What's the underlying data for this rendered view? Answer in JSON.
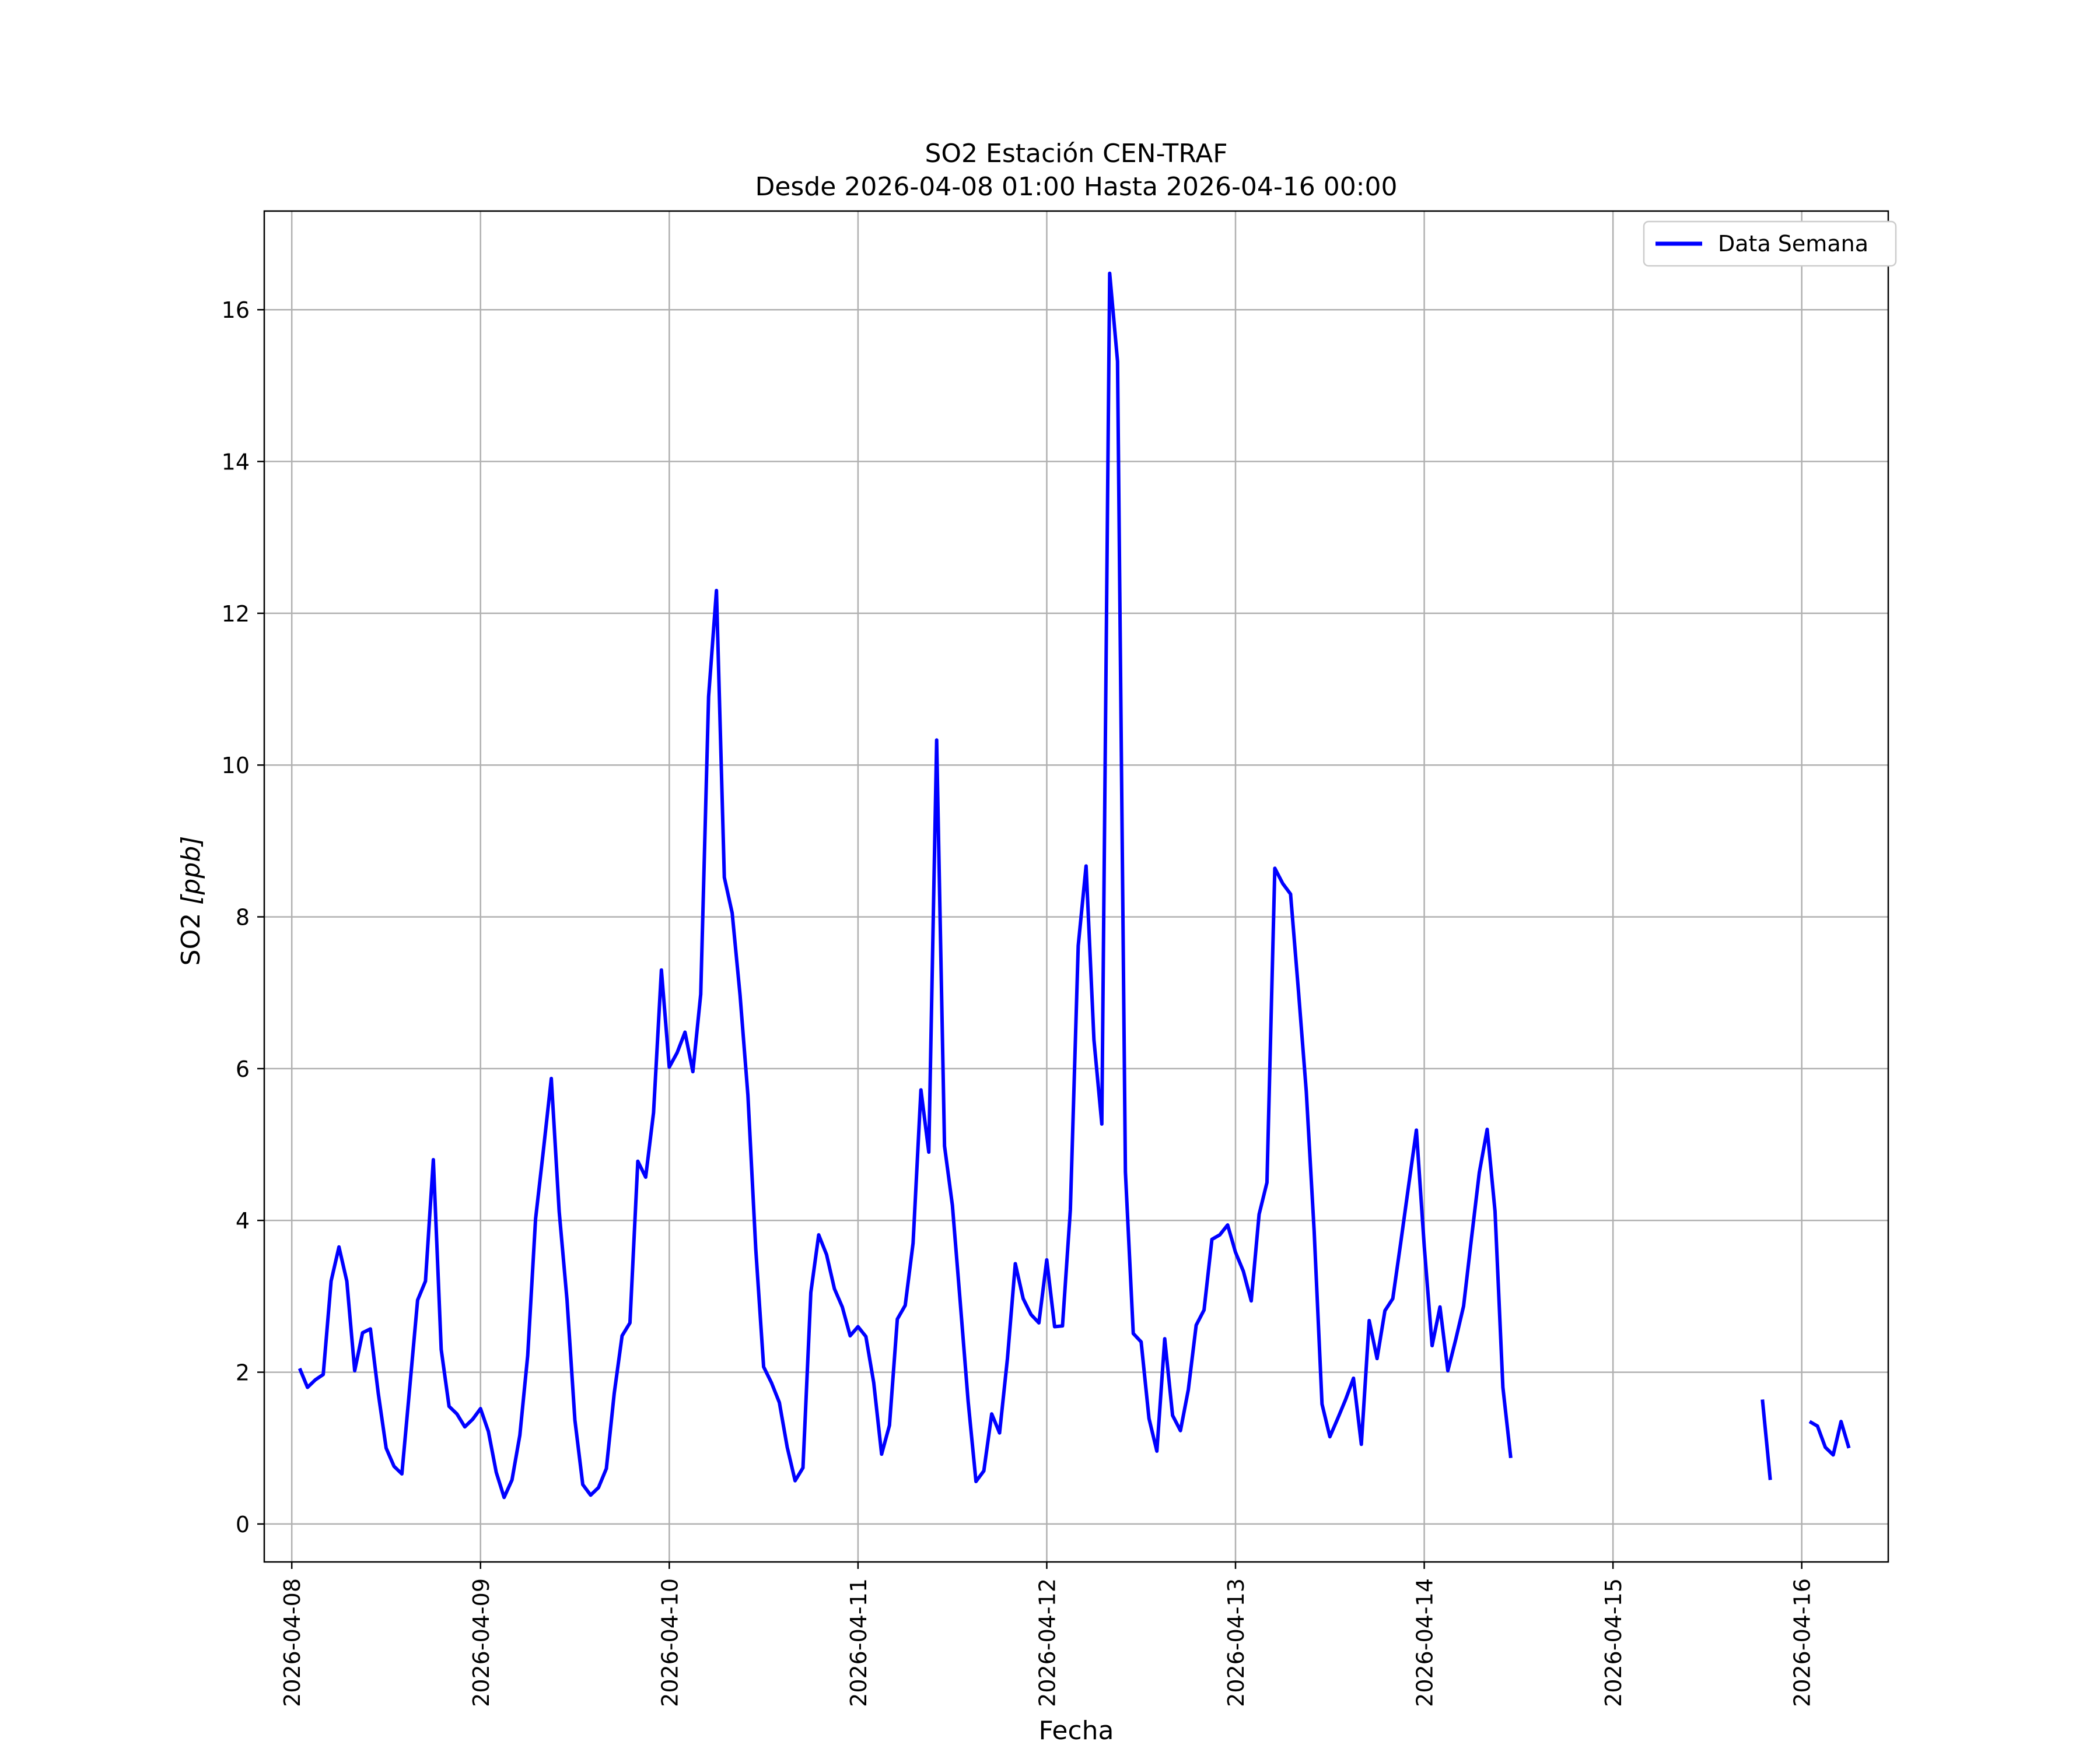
{
  "chart_data": {
    "type": "line",
    "title": "SO2 Estación CEN-TRAF",
    "subtitle": "Desde 2026-04-08 01:00 Hasta 2026-04-16 00:00",
    "xlabel": "Fecha",
    "ylabel_prefix": "SO2 ",
    "ylabel_unit": "[ppb]",
    "x_start": "2026-04-08 01:00",
    "xlim": [
      "2026-04-07 20:30",
      "2026-04-16 11:00"
    ],
    "ylim": [
      -0.5,
      17.3
    ],
    "x_ticks": [
      "2026-04-08",
      "2026-04-09",
      "2026-04-10",
      "2026-04-11",
      "2026-04-12",
      "2026-04-13",
      "2026-04-14",
      "2026-04-15",
      "2026-04-16"
    ],
    "y_ticks": [
      0,
      2,
      4,
      6,
      8,
      10,
      12,
      14,
      16
    ],
    "y_tick_labels": [
      "0",
      "2",
      "4",
      "6",
      "8",
      "10",
      "12",
      "14",
      "16"
    ],
    "grid": true,
    "legend_position": "top-right",
    "series": [
      {
        "name": "Data Semana",
        "color": "#0000ff",
        "interval_hours": 1,
        "values": [
          2.05,
          1.8,
          1.9,
          1.97,
          3.2,
          3.65,
          3.2,
          2.02,
          2.52,
          2.57,
          1.72,
          1.0,
          0.76,
          0.66,
          1.8,
          2.95,
          3.2,
          4.8,
          2.3,
          1.55,
          1.45,
          1.28,
          1.38,
          1.52,
          1.22,
          0.68,
          0.35,
          0.58,
          1.17,
          2.22,
          4.02,
          4.93,
          5.87,
          4.12,
          2.95,
          1.37,
          0.52,
          0.38,
          0.48,
          0.73,
          1.72,
          2.48,
          2.65,
          4.78,
          4.57,
          5.42,
          7.3,
          6.02,
          6.21,
          6.48,
          5.96,
          6.98,
          10.9,
          12.3,
          8.52,
          8.05,
          6.97,
          5.65,
          3.62,
          2.07,
          1.86,
          1.6,
          1.01,
          0.57,
          0.74,
          3.05,
          3.81,
          3.55,
          3.1,
          2.86,
          2.48,
          2.6,
          2.47,
          1.86,
          0.92,
          1.3,
          2.7,
          2.88,
          3.7,
          5.72,
          4.9,
          10.33,
          4.98,
          4.2,
          2.92,
          1.62,
          0.56,
          0.7,
          1.45,
          1.2,
          2.18,
          3.43,
          2.97,
          2.76,
          2.65,
          3.48,
          2.6,
          2.61,
          4.14,
          7.62,
          8.67,
          6.38,
          5.27,
          16.48,
          15.32,
          4.64,
          2.51,
          2.4,
          1.39,
          0.96,
          2.44,
          1.43,
          1.23,
          1.77,
          2.62,
          2.82,
          3.75,
          3.81,
          3.94,
          3.58,
          3.33,
          2.94,
          4.08,
          4.5,
          8.64,
          8.44,
          8.3,
          7.03,
          5.7,
          3.86,
          1.58,
          1.15,
          1.39,
          1.64,
          1.92,
          1.05,
          2.68,
          2.18,
          2.81,
          2.97,
          3.7,
          4.45,
          5.19,
          3.66,
          2.35,
          2.86,
          2.02,
          2.43,
          2.87,
          3.76,
          4.63,
          5.2,
          4.12,
          1.8,
          0.87,
          null,
          null,
          null,
          null,
          null,
          null,
          null,
          null,
          null,
          null,
          null,
          null,
          null,
          null,
          null,
          null,
          null,
          null,
          null,
          null,
          null,
          null,
          null,
          null,
          null,
          null,
          null,
          null,
          null,
          null,
          null,
          1.64,
          0.58,
          null,
          null,
          null,
          null,
          1.35,
          1.29,
          1.01,
          0.91,
          1.35,
          1.0
        ]
      }
    ]
  }
}
